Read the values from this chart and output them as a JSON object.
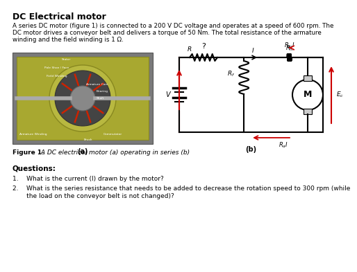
{
  "title": "DC Electrical motor",
  "para_line1": "A series DC motor (figure 1) is connected to a 200 V DC voltage and operates at a speed of 600 rpm. The",
  "para_line2": "DC motor drives a conveyor belt and delivers a torque of 50 Nm. The total resistance of the armature",
  "para_line3": "winding and the field winding is 1 Ω.",
  "fig_caption_bold": "Figure 1.",
  "fig_caption_rest": " A DC electrical motor (a) operating in series (b)",
  "questions_header": "Questions:",
  "q1": "1.    What is the current (I) drawn by the motor?",
  "q2a": "2.    What is the series resistance that needs to be added to decrease the rotation speed to 300 rpm (while",
  "q2b": "       the load on the conveyor belt is not changed)?",
  "label_a": "(a)",
  "label_b": "(b)",
  "bg_color": "#ffffff",
  "text_color": "#000000",
  "red_color": "#cc0000"
}
